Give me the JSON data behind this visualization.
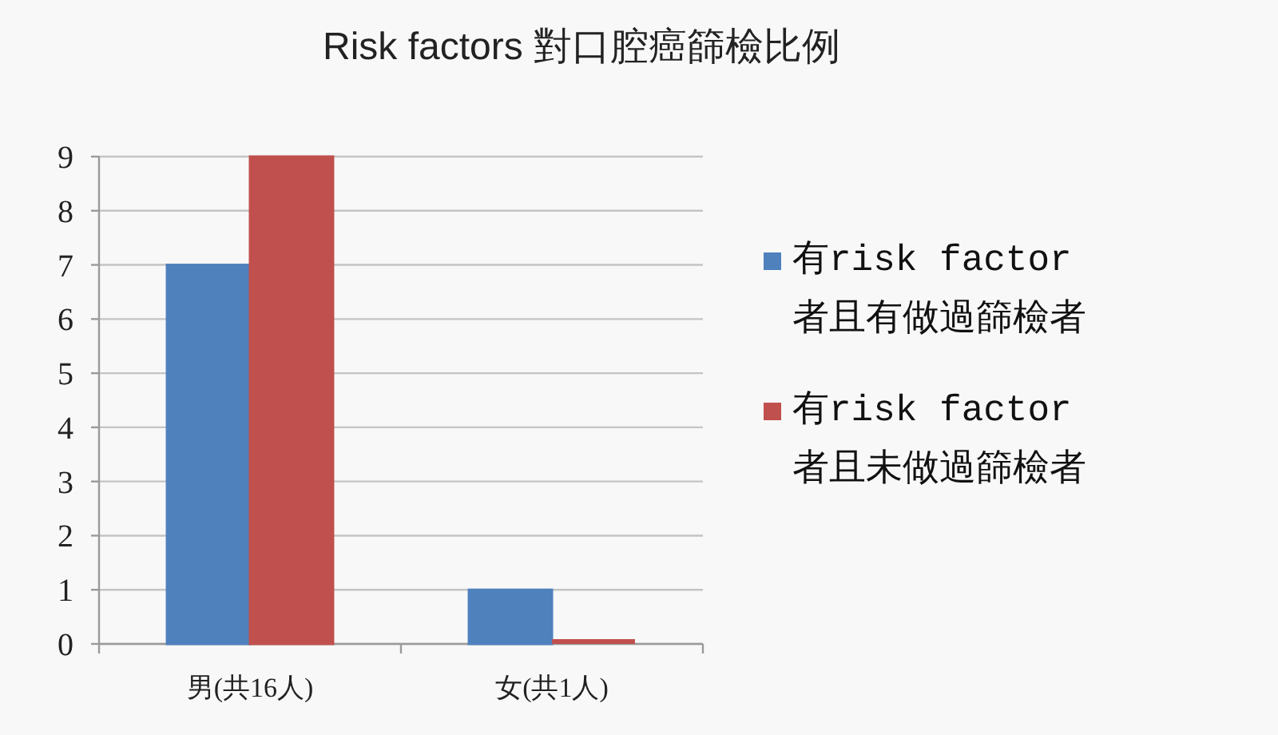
{
  "chart_data": {
    "type": "bar",
    "title": "Risk factors 對口腔癌篩檢比例",
    "categories": [
      "男(共16人)",
      "女(共1人)"
    ],
    "series": [
      {
        "name": "有risk factor者且有做過篩檢者",
        "color": "#4f81bd",
        "values": [
          7,
          1
        ]
      },
      {
        "name": "有risk factor者且未做過篩檢者",
        "color": "#c0504d",
        "values": [
          9,
          0
        ]
      }
    ],
    "ylim": [
      0,
      9
    ],
    "yticks": [
      0,
      1,
      2,
      3,
      4,
      5,
      6,
      7,
      8,
      9
    ],
    "grid": "y",
    "legend": "right"
  }
}
